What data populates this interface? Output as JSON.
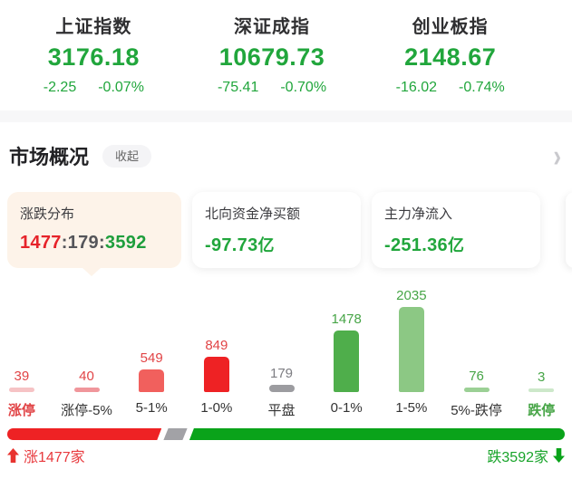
{
  "indices": [
    {
      "name": "上证指数",
      "value": "3176.18",
      "change": "-2.25",
      "change_pct": "-0.07%"
    },
    {
      "name": "深证成指",
      "value": "10679.73",
      "change": "-75.41",
      "change_pct": "-0.70%"
    },
    {
      "name": "创业板指",
      "value": "2148.67",
      "change": "-16.02",
      "change_pct": "-0.74%"
    }
  ],
  "section_header": {
    "title": "市场概况",
    "collapse_button": "收起",
    "chevron": "›"
  },
  "cards": [
    {
      "title": "涨跌分布",
      "up_count": "1477",
      "flat_count": "179",
      "down_count": "3592",
      "separator": ":"
    },
    {
      "title": "北向资金净买额",
      "value": "-97.73",
      "unit": "亿"
    },
    {
      "title": "主力净流入",
      "value": "-251.36",
      "unit": "亿"
    }
  ],
  "chart_data": {
    "type": "bar",
    "title": "涨跌分布",
    "categories": [
      "涨停",
      "涨停-5%",
      "5-1%",
      "1-0%",
      "平盘",
      "0-1%",
      "1-5%",
      "5%-跌停",
      "跌停"
    ],
    "values": [
      39,
      40,
      549,
      849,
      179,
      1478,
      2035,
      76,
      3
    ],
    "bar_colors": [
      "#f6c3c5",
      "#f0969b",
      "#f1605d",
      "#ee2224",
      "#9c9ca0",
      "#4fae4b",
      "#8cc884",
      "#9bd095",
      "#cde8ca"
    ],
    "value_label_colors": [
      "#e14446",
      "#e14446",
      "#e14446",
      "#e14446",
      "#7d7d82",
      "#47a547",
      "#47a547",
      "#47a547",
      "#47a547"
    ],
    "category_label_colors": [
      "#e14446",
      "#333333",
      "#333333",
      "#333333",
      "#333333",
      "#333333",
      "#333333",
      "#333333",
      "#47a547"
    ],
    "ylim": [
      0,
      2035
    ],
    "grid": false,
    "value_labels_shown": true,
    "legend": "none"
  },
  "summary_bar": {
    "up": 1477,
    "flat": 179,
    "down": 3592,
    "up_label": "涨1477家",
    "down_label": "跌3592家"
  },
  "colors": {
    "index_green": "#21a63c",
    "card_up_red": "#e6232a",
    "card_down_green": "#1e9e3c",
    "progress_red": "#ee2224",
    "progress_gray": "#a2a2a6",
    "progress_green": "#0aa31a",
    "selected_card_bg": "#fdf3e9"
  }
}
